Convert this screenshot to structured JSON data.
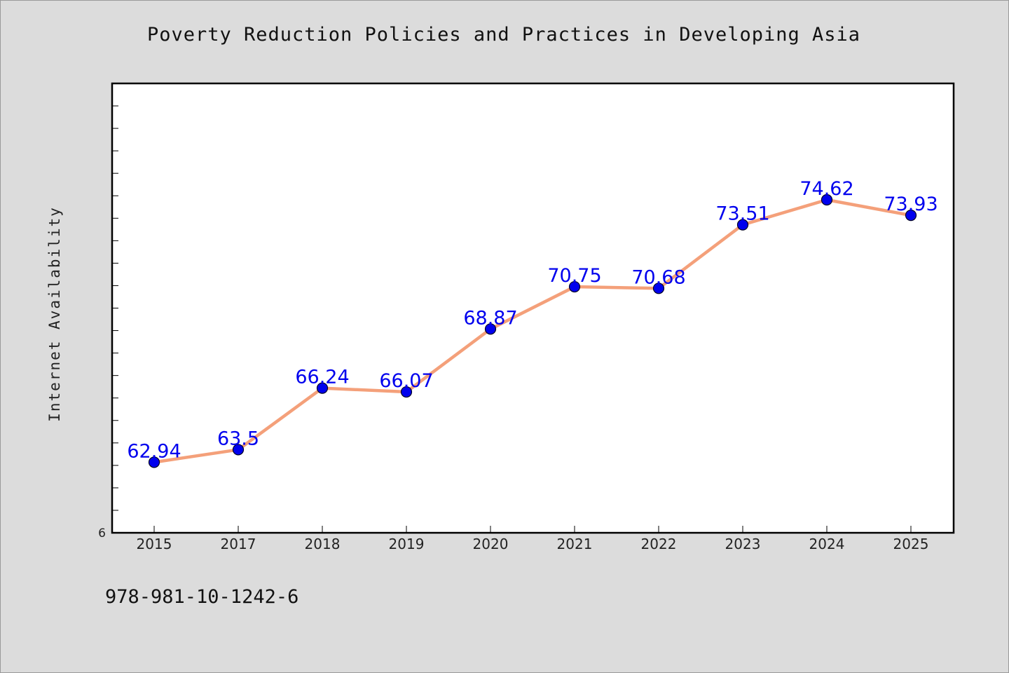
{
  "chart_data": {
    "type": "line",
    "title": "Poverty Reduction Policies and Practices in Developing Asia",
    "xlabel": "",
    "ylabel": "Internet Availability",
    "categories": [
      "2015",
      "2017",
      "2018",
      "2019",
      "2020",
      "2021",
      "2022",
      "2023",
      "2024",
      "2025"
    ],
    "series": [
      {
        "values": [
          62.94,
          63.5,
          66.24,
          66.07,
          68.87,
          70.75,
          70.68,
          73.51,
          74.62,
          73.93
        ],
        "labels": [
          "62.94",
          "63.5",
          "66.24",
          "66.07",
          "68.87",
          "70.75",
          "70.68",
          "73.51",
          "74.62",
          "73.93"
        ]
      }
    ],
    "ylim": [
      59.8,
      79.8
    ],
    "y_tick_labels": [
      {
        "value": 59.8,
        "label": "6"
      }
    ],
    "y_minor_tick_step": 1,
    "grid": false,
    "line_color": "#f4a07a",
    "marker_color": "#0000ee",
    "label_color": "#0000ee"
  },
  "footer_note": "978-981-10-1242-6"
}
